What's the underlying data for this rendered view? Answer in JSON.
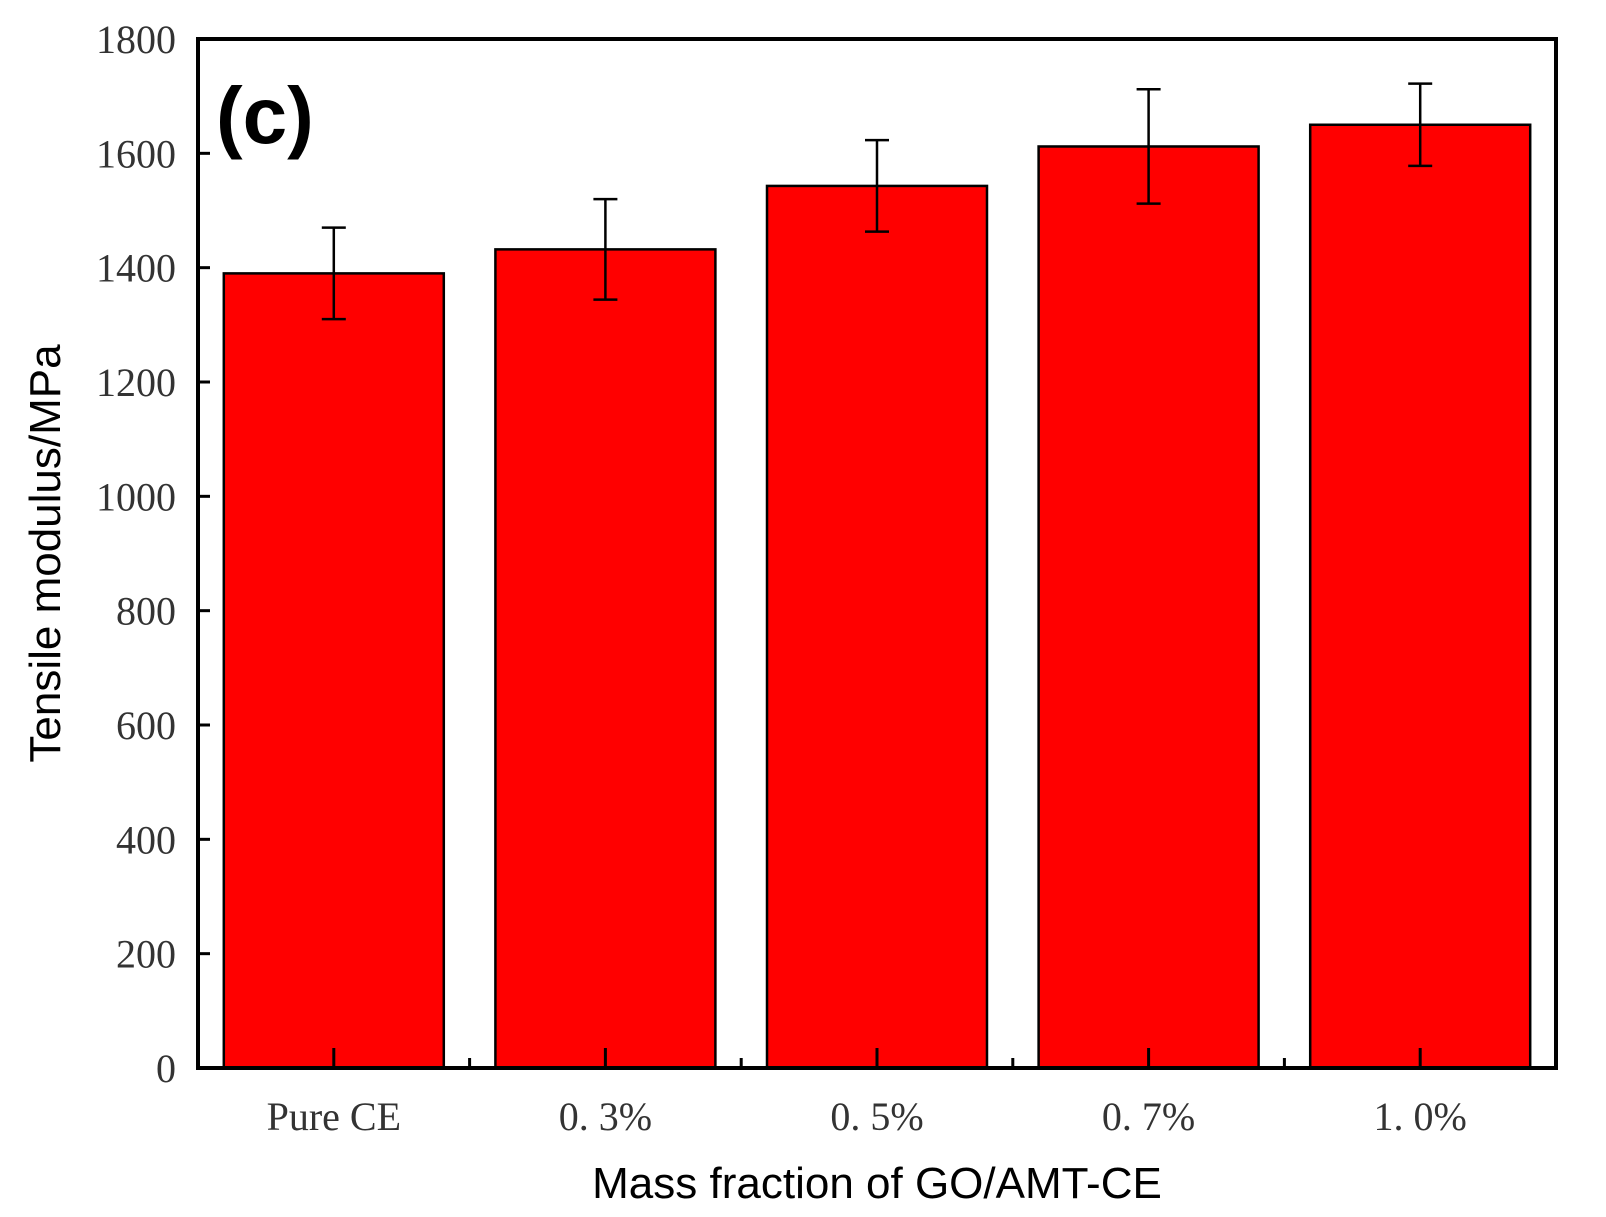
{
  "chart_data": {
    "type": "bar",
    "panel_label": "(c)",
    "xlabel": "Mass fraction of GO/AMT-CE",
    "ylabel": "Tensile modulus/MPa",
    "categories": [
      "Pure CE",
      "0. 3%",
      "0. 5%",
      "0. 7%",
      "1. 0%"
    ],
    "values": [
      1390,
      1432,
      1543,
      1612,
      1650
    ],
    "errors": [
      80,
      88,
      80,
      100,
      72
    ],
    "ylim": [
      0,
      1800
    ],
    "yticks": [
      0,
      200,
      400,
      600,
      800,
      1000,
      1200,
      1400,
      1600,
      1800
    ],
    "bar_color": "#ff0000",
    "grid": false,
    "legend": "none"
  }
}
